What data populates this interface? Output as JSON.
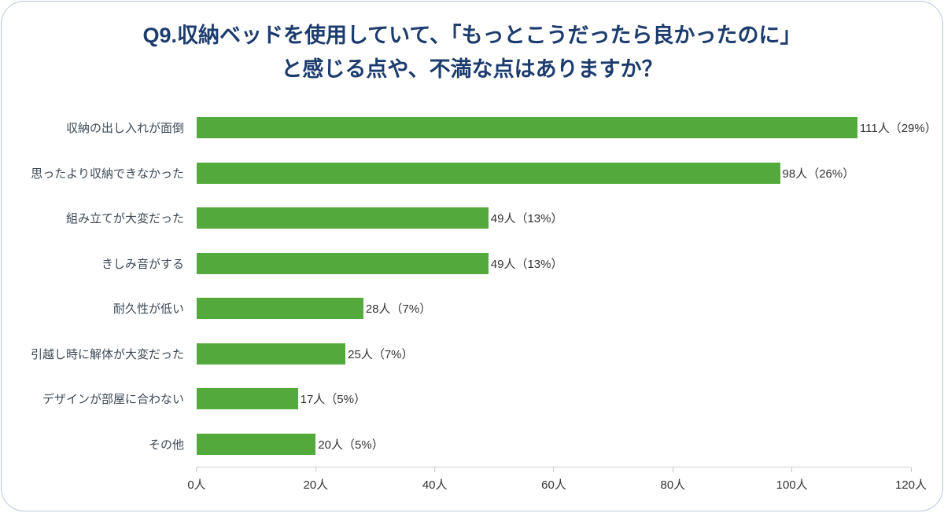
{
  "chart_data": {
    "type": "bar",
    "orientation": "horizontal",
    "title": "Q9.収納ベッドを使用していて、「もっとこうだったら良かったのに」と感じる点や、不満な点はありますか？",
    "title_lines": [
      "Q9.収納ベッドを使用していて、「もっとこうだったら良かったのに」",
      "と感じる点や、不満な点はありますか？"
    ],
    "categories": [
      "収納の出し入れが面倒",
      "思ったより収納できなかった",
      "組み立てが大変だった",
      "きしみ音がする",
      "耐久性が低い",
      "引越し時に解体が大変だった",
      "デザインが部屋に合わない",
      "その他"
    ],
    "values": [
      111,
      98,
      49,
      49,
      28,
      25,
      17,
      20
    ],
    "value_labels": [
      "111人（29%）",
      "98人（26%）",
      "49人（13%）",
      "49人（13%）",
      "28人（7%）",
      "25人（7%）",
      "17人（5%）",
      "20人（5%）"
    ],
    "x_ticks": [
      "0人",
      "20人",
      "40人",
      "60人",
      "80人",
      "100人",
      "120人"
    ],
    "xlim": [
      0,
      120
    ],
    "xlabel": "",
    "ylabel": "",
    "grid": "off",
    "legend": "none",
    "bar_color": "#53a93c",
    "title_color": "#1d3c6e"
  }
}
